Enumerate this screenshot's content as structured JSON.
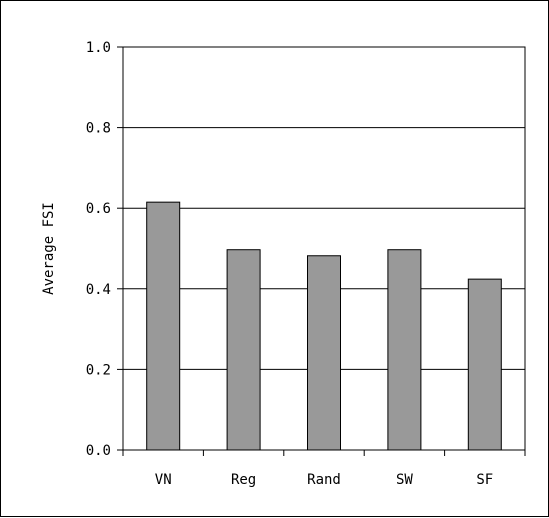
{
  "chart_data": {
    "type": "bar",
    "title": "",
    "xlabel": "",
    "ylabel": "Average FSI",
    "categories": [
      "VN",
      "Reg",
      "Rand",
      "SW",
      "SF"
    ],
    "values": [
      0.615,
      0.497,
      0.482,
      0.497,
      0.424
    ],
    "ylim": [
      0,
      1.0
    ],
    "yticks": [
      "0.0",
      "0.2",
      "0.4",
      "0.6",
      "0.8",
      "1.0"
    ],
    "grid": "horizontal",
    "legend": "none",
    "bar_color": "#999999"
  }
}
